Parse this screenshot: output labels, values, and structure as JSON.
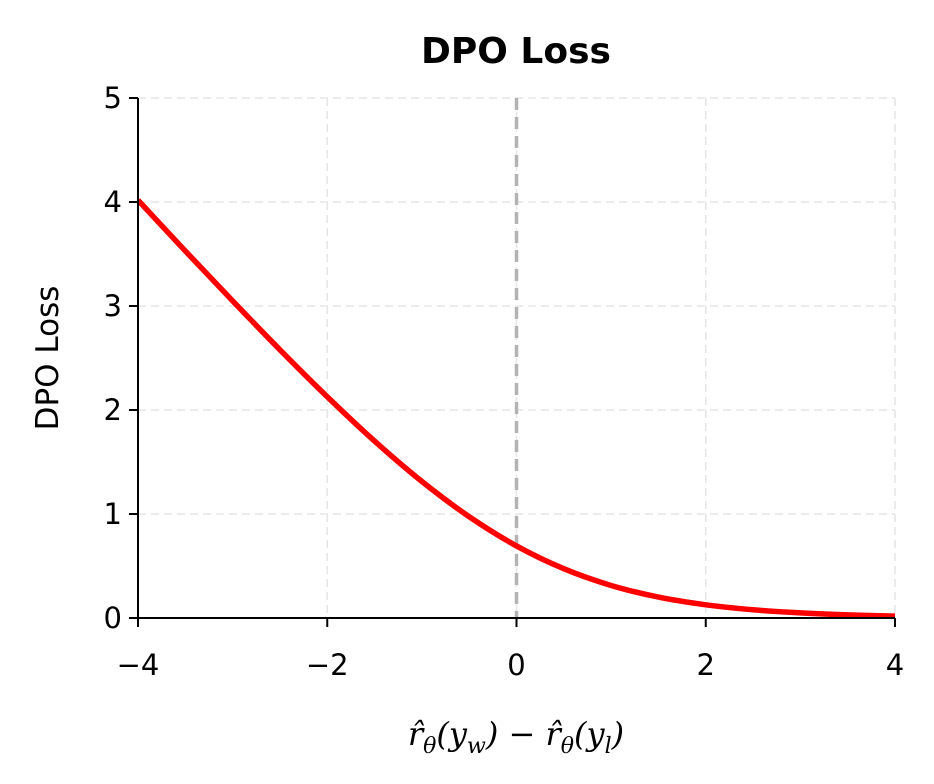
{
  "chart_data": {
    "type": "line",
    "title": "DPO Loss",
    "xlabel": "r̂θ(yw) − r̂θ(yl)",
    "ylabel": "DPO Loss",
    "xlim": [
      -4,
      4
    ],
    "ylim": [
      0,
      5
    ],
    "xticks": [
      "−4",
      "−2",
      "0",
      "2",
      "4"
    ],
    "yticks": [
      "0",
      "1",
      "2",
      "3",
      "4",
      "5"
    ],
    "grid": true,
    "reference_line": {
      "x": 0,
      "style": "dashed",
      "color": "#b3b3b3"
    },
    "series": [
      {
        "color": "#ff0000",
        "x": [
          -4,
          -3.5,
          -3,
          -2.5,
          -2,
          -1.5,
          -1,
          -0.5,
          0,
          0.5,
          1,
          1.5,
          2,
          2.5,
          3,
          3.5,
          4
        ],
        "y": [
          4.018,
          3.529,
          3.049,
          2.579,
          2.127,
          1.701,
          1.313,
          0.974,
          0.693,
          0.474,
          0.313,
          0.201,
          0.127,
          0.079,
          0.049,
          0.03,
          0.018
        ]
      }
    ]
  }
}
